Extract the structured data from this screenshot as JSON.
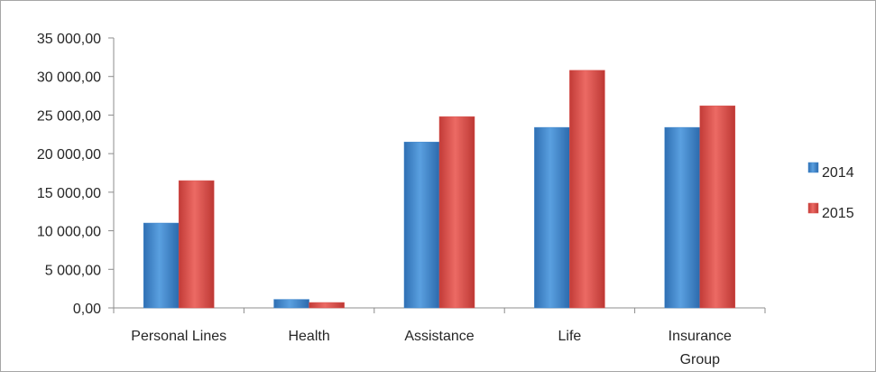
{
  "chart_data": {
    "type": "bar",
    "title": "",
    "xlabel": "",
    "ylabel": "",
    "categories": [
      "Personal Lines",
      "Health",
      "Assistance",
      "Life",
      "Insurance Group"
    ],
    "series": [
      {
        "name": "2014",
        "color": "#3f86cc",
        "values": [
          11000,
          1100,
          21500,
          23400,
          23400
        ]
      },
      {
        "name": "2015",
        "color": "#d9534f",
        "values": [
          16500,
          700,
          24800,
          30800,
          26200
        ]
      }
    ],
    "ylim": [
      0,
      35000
    ],
    "yticks": [
      {
        "value": 0,
        "label": "0,00"
      },
      {
        "value": 5000,
        "label": "5 000,00"
      },
      {
        "value": 10000,
        "label": "10 000,00"
      },
      {
        "value": 15000,
        "label": "15 000,00"
      },
      {
        "value": 20000,
        "label": "20 000,00"
      },
      {
        "value": 25000,
        "label": "25 000,00"
      },
      {
        "value": 30000,
        "label": "30 000,00"
      },
      {
        "value": 35000,
        "label": "35 000,00"
      }
    ],
    "grid": false,
    "legend": "right"
  }
}
